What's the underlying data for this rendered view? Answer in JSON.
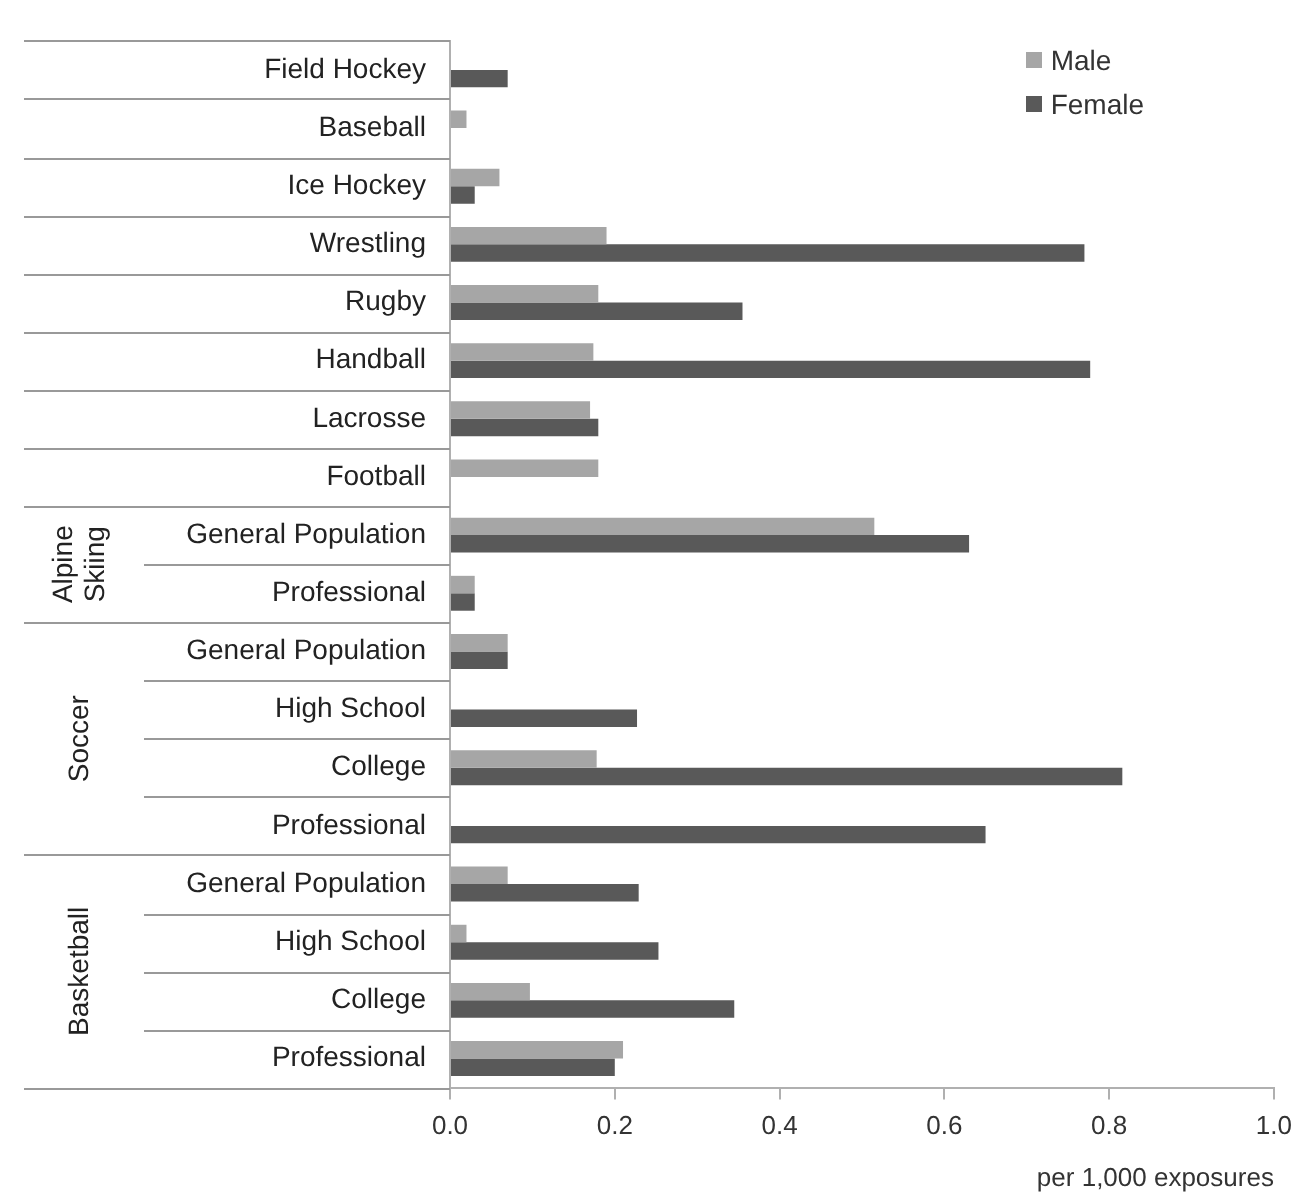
{
  "chart_data": {
    "type": "bar",
    "orientation": "horizontal",
    "xlabel": "per 1,000 exposures",
    "categories": [
      "Field Hockey",
      "Baseball",
      "Ice Hockey",
      "Wrestling",
      "Rugby",
      "Handball",
      "Lacrosse",
      "Football",
      "General Population",
      "Professional",
      "General Population",
      "High School",
      "College",
      "Professional",
      "General Population",
      "High School",
      "College",
      "Professional"
    ],
    "series": [
      {
        "name": "Male",
        "color": "#a6a6a6",
        "values": [
          null,
          0.02,
          0.06,
          0.19,
          0.18,
          0.174,
          0.17,
          0.18,
          0.515,
          0.03,
          0.07,
          null,
          0.178,
          null,
          0.07,
          0.02,
          0.097,
          0.21
        ]
      },
      {
        "name": "Female",
        "color": "#595959",
        "values": [
          0.07,
          null,
          0.03,
          0.77,
          0.355,
          0.777,
          0.18,
          null,
          0.63,
          0.03,
          0.07,
          0.227,
          0.816,
          0.65,
          0.229,
          0.253,
          0.345,
          0.2
        ]
      }
    ],
    "annotations": [
      "Alpine Skiing",
      "Soccer",
      "Basketball"
    ],
    "xlim": [
      0,
      1
    ],
    "xticks": [
      {
        "value": 0,
        "label": "0.0"
      },
      {
        "value": 0.2,
        "label": "0.2"
      },
      {
        "value": 0.4,
        "label": "0.4"
      },
      {
        "value": 0.6,
        "label": "0.6"
      },
      {
        "value": 0.8,
        "label": "0.8"
      },
      {
        "value": 1,
        "label": "1.0"
      }
    ],
    "legend": "top right",
    "grid": false
  }
}
